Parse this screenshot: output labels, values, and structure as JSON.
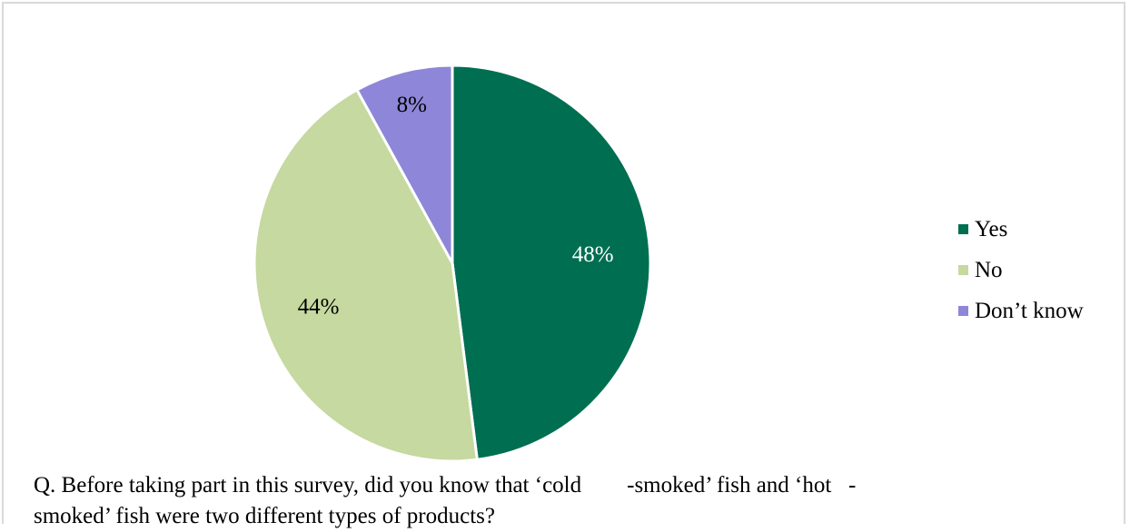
{
  "chart_data": {
    "type": "pie",
    "slices": [
      {
        "label": "Yes",
        "value": 48,
        "data_label": "48%",
        "color": "#006e51",
        "label_color": "#ffffff"
      },
      {
        "label": "No",
        "value": 44,
        "data_label": "44%",
        "color": "#c5d9a0",
        "label_color": "#000000"
      },
      {
        "label": "Don’t know",
        "value": 8,
        "data_label": "8%",
        "color": "#8e86d8",
        "label_color": "#000000"
      }
    ],
    "legend_position": "right"
  },
  "caption": {
    "line1": "Q. Before taking part in this survey, did you know that ‘cold        -smoked’ fish and ‘hot   -",
    "line2": "smoked’ fish were two different types of products?"
  }
}
